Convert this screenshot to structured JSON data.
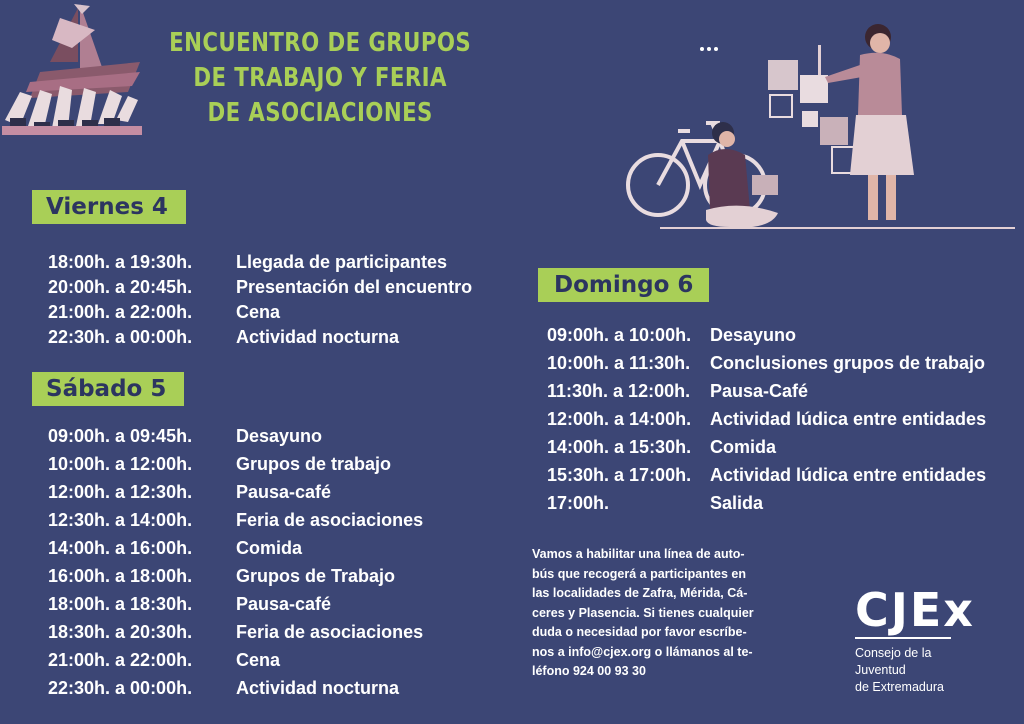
{
  "title_lines": [
    "ENCUENTRO DE GRUPOS",
    "DE TRABAJO Y FERIA",
    "DE ASOCIACIONES"
  ],
  "colors": {
    "background": "#3c4675",
    "accent": "#a9cf57",
    "badge_text": "#2c3560"
  },
  "friday": {
    "label": "Viernes 4",
    "items": [
      {
        "time": "18:00h. a 19:30h.",
        "activity": "Llegada de participantes"
      },
      {
        "time": "20:00h. a 20:45h.",
        "activity": "Presentación del encuentro"
      },
      {
        "time": "21:00h. a 22:00h.",
        "activity": "Cena"
      },
      {
        "time": "22:30h. a 00:00h.",
        "activity": "Actividad nocturna"
      }
    ]
  },
  "saturday": {
    "label": "Sábado 5",
    "items": [
      {
        "time": "09:00h. a 09:45h.",
        "activity": "Desayuno"
      },
      {
        "time": "10:00h. a 12:00h.",
        "activity": "Grupos de trabajo"
      },
      {
        "time": "12:00h. a 12:30h.",
        "activity": "Pausa-café"
      },
      {
        "time": "12:30h. a 14:00h.",
        "activity": "Feria de asociaciones"
      },
      {
        "time": "14:00h. a 16:00h.",
        "activity": "Comida"
      },
      {
        "time": "16:00h. a 18:00h.",
        "activity": "Grupos de Trabajo"
      },
      {
        "time": "18:00h. a 18:30h.",
        "activity": "Pausa-café"
      },
      {
        "time": "18:30h. a 20:30h.",
        "activity": "Feria de asociaciones"
      },
      {
        "time": "21:00h. a 22:00h.",
        "activity": "Cena"
      },
      {
        "time": "22:30h. a 00:00h.",
        "activity": "Actividad nocturna"
      }
    ]
  },
  "sunday": {
    "label": "Domingo 6",
    "items": [
      {
        "time": "09:00h. a 10:00h.",
        "activity": "Desayuno"
      },
      {
        "time": "10:00h. a 11:30h.",
        "activity": "Conclusiones grupos de trabajo"
      },
      {
        "time": "11:30h. a 12:00h.",
        "activity": "Pausa-Café"
      },
      {
        "time": "12:00h. a 14:00h.",
        "activity": "Actividad lúdica entre entidades"
      },
      {
        "time": "14:00h. a 15:30h.",
        "activity": "Comida"
      },
      {
        "time": "15:30h. a 17:00h.",
        "activity": "Actividad lúdica entre entidades"
      },
      {
        "time": "17:00h.",
        "activity": "Salida"
      }
    ]
  },
  "note_lines": [
    "Vamos a habilitar una línea de auto-",
    "bús que recogerá a participantes en",
    "las localidades de Zafra, Mérida, Cá-",
    "ceres y Plasencia. Si tienes cualquier",
    "duda o necesidad por favor escríbe-",
    "nos a  info@cjex.org o llámanos al te-",
    "léfono 924 00 93 30"
  ],
  "logo": {
    "mark": "CJEx",
    "subtitle_lines": [
      "Consejo de la Juventud",
      "de Extremadura"
    ]
  },
  "icons": [
    "boat-hands-illustration",
    "bicycle-people-illustration",
    "ellipsis-icon"
  ]
}
